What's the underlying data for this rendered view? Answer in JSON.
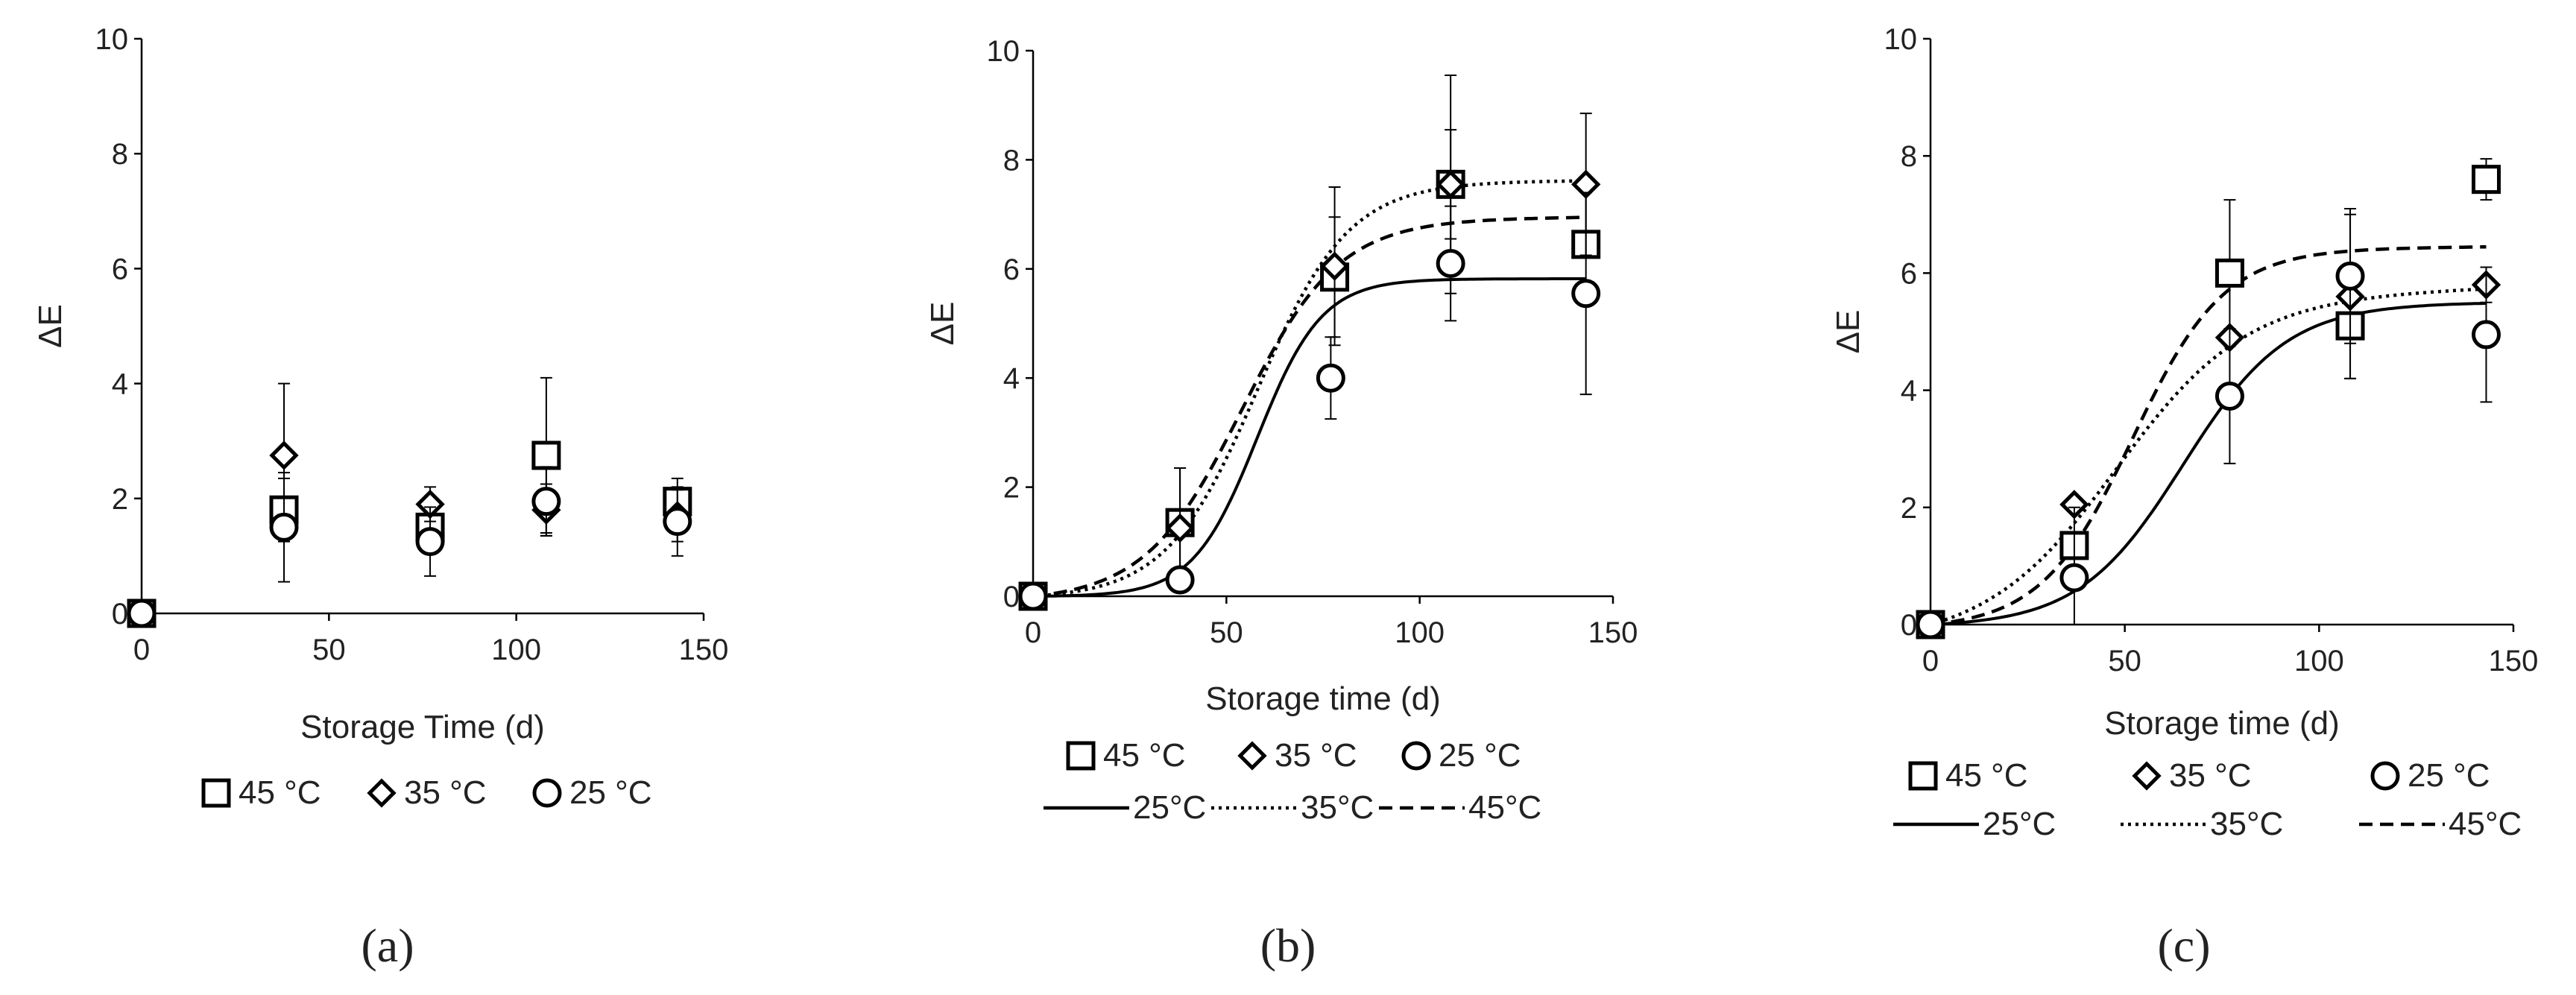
{
  "chart_data": [
    {
      "type": "scatter",
      "panel": "(a)",
      "xlabel": "Storage Time (d)",
      "ylabel": "ΔE",
      "xlim": [
        0,
        150
      ],
      "ylim": [
        0,
        10
      ],
      "xticks": [
        "0",
        "50",
        "100",
        "150"
      ],
      "yticks": [
        "0",
        "2",
        "4",
        "6",
        "8",
        "10"
      ],
      "legend_position": "bottom",
      "series": [
        {
          "name": "45 °C",
          "marker": "square",
          "x": [
            0,
            38,
            77,
            108,
            143
          ],
          "y": [
            0,
            1.8,
            1.5,
            2.75,
            1.95
          ],
          "err": [
            0,
            0.55,
            0.45,
            1.35,
            0.4
          ]
        },
        {
          "name": "35 °C",
          "marker": "diamond",
          "x": [
            0,
            38,
            77,
            108,
            143
          ],
          "y": [
            0,
            2.75,
            1.9,
            1.8,
            1.7
          ],
          "err": [
            0,
            1.25,
            0.3,
            0.45,
            0.45
          ]
        },
        {
          "name": "25 °C",
          "marker": "circle",
          "x": [
            0,
            38,
            77,
            108,
            143
          ],
          "y": [
            0,
            1.5,
            1.25,
            1.95,
            1.6
          ],
          "err": [
            0,
            0.95,
            0.6,
            0.6,
            0.6
          ]
        }
      ],
      "fits": []
    },
    {
      "type": "scatter",
      "panel": "(b)",
      "xlabel": "Storage time (d)",
      "ylabel": "ΔE",
      "xlim": [
        0,
        150
      ],
      "ylim": [
        0,
        10
      ],
      "xticks": [
        "0",
        "50",
        "100",
        "150"
      ],
      "yticks": [
        "0",
        "2",
        "4",
        "6",
        "8",
        "10"
      ],
      "legend_position": "bottom",
      "series": [
        {
          "name": "45 °C",
          "marker": "square",
          "x": [
            0,
            38,
            78,
            108,
            143
          ],
          "y": [
            0,
            1.35,
            5.85,
            7.55,
            6.45
          ],
          "err": [
            0,
            1.0,
            1.1,
            2.0,
            0
          ]
        },
        {
          "name": "35 °C",
          "marker": "diamond",
          "x": [
            0,
            38,
            78,
            108,
            143
          ],
          "y": [
            0,
            1.25,
            6.05,
            7.55,
            7.55
          ],
          "err": [
            0,
            1.1,
            1.45,
            1.0,
            1.3
          ]
        },
        {
          "name": "25 °C",
          "marker": "circle",
          "x": [
            0,
            38,
            77,
            108,
            143
          ],
          "y": [
            0,
            0.3,
            4.0,
            6.1,
            5.55
          ],
          "err": [
            0,
            0,
            0.75,
            1.05,
            1.85
          ]
        }
      ],
      "fits": [
        {
          "name": "25°C",
          "style": "solid",
          "plateau": 5.82,
          "midpoint": 58,
          "rate": 0.12
        },
        {
          "name": "35°C",
          "style": "dotted",
          "plateau": 7.62,
          "midpoint": 58,
          "rate": 0.085
        },
        {
          "name": "45°C",
          "style": "dashed",
          "plateau": 6.95,
          "midpoint": 54,
          "rate": 0.08
        }
      ]
    },
    {
      "type": "scatter",
      "panel": "(c)",
      "xlabel": "Storage time (d)",
      "ylabel": "ΔE",
      "xlim": [
        0,
        150
      ],
      "ylim": [
        0,
        10
      ],
      "xticks": [
        "0",
        "50",
        "100",
        "150"
      ],
      "yticks": [
        "0",
        "2",
        "4",
        "6",
        "8",
        "10"
      ],
      "legend_position": "bottom",
      "series": [
        {
          "name": "45 °C",
          "marker": "square",
          "x": [
            0,
            37,
            77,
            108,
            143
          ],
          "y": [
            0,
            1.35,
            6.0,
            5.1,
            7.6
          ],
          "err": [
            0,
            0,
            1.25,
            0.9,
            0.35
          ]
        },
        {
          "name": "35 °C",
          "marker": "diamond",
          "x": [
            0,
            37,
            77,
            108,
            143
          ],
          "y": [
            0,
            2.05,
            4.9,
            5.6,
            5.8
          ],
          "err": [
            0,
            0,
            0,
            1.4,
            0.3
          ]
        },
        {
          "name": "25 °C",
          "marker": "circle",
          "x": [
            0,
            37,
            77,
            108,
            143
          ],
          "y": [
            0,
            0.8,
            3.9,
            5.95,
            4.95
          ],
          "err": [
            0,
            1.2,
            1.15,
            1.15,
            1.15
          ]
        }
      ],
      "fits": [
        {
          "name": "25°C",
          "style": "solid",
          "plateau": 5.5,
          "midpoint": 65,
          "rate": 0.075
        },
        {
          "name": "35°C",
          "style": "dotted",
          "plateau": 5.75,
          "midpoint": 48,
          "rate": 0.06
        },
        {
          "name": "45°C",
          "style": "dashed",
          "plateau": 6.45,
          "midpoint": 52,
          "rate": 0.085
        }
      ]
    }
  ]
}
